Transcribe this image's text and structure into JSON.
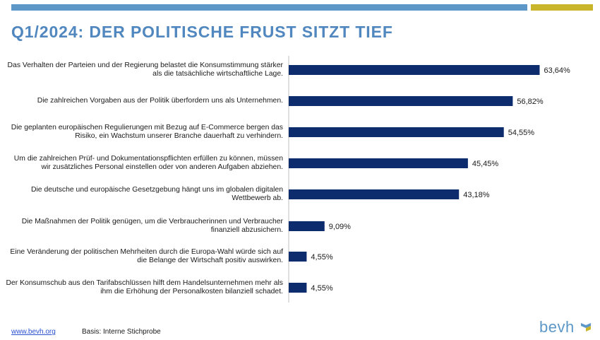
{
  "header": {
    "title": "Q1/2024: DER POLITISCHE FRUST SITZT TIEF"
  },
  "colors": {
    "bar": "#0c2c6e",
    "title": "#4f87be",
    "topbar_blue": "#5d97c7",
    "topbar_gold": "#c8b52a",
    "axis": "#bfbfbf"
  },
  "chart_data": {
    "type": "bar",
    "orientation": "horizontal",
    "title": "Q1/2024: DER POLITISCHE FRUST SITZT TIEF",
    "xlabel": "",
    "ylabel": "",
    "xlim": [
      0,
      70
    ],
    "grid": false,
    "legend": "none",
    "categories": [
      "Das Verhalten der Parteien und der Regierung belastet die Konsumstimmung stärker als die tatsächliche wirtschaftliche Lage.",
      "Die zahlreichen Vorgaben aus der Politik überfordern uns als Unternehmen.",
      "Die geplanten europäischen Regulierungen mit Bezug auf E-Commerce bergen das Risiko, ein Wachstum unserer Branche dauerhaft zu verhindern.",
      "Um die zahlreichen Prüf- und Dokumentationspflichten erfüllen zu können, müssen wir zusätzliches Personal einstellen oder von anderen Aufgaben abziehen.",
      "Die deutsche und europäische Gesetzgebung hängt uns im globalen digitalen Wettbewerb ab.",
      "Die Maßnahmen der Politik genügen, um die Verbraucherinnen und Verbraucher finanziell abzusichern.",
      "Eine Veränderung der politischen Mehrheiten durch die Europa-Wahl würde sich auf die Belange der Wirtschaft positiv auswirken.",
      "Der Konsumschub aus den Tarifabschlüssen hilft dem Handelsunternehmen mehr als ihm die Erhöhung der Personalkosten bilanziell schadet."
    ],
    "values": [
      63.64,
      56.82,
      54.55,
      45.45,
      43.18,
      9.09,
      4.55,
      4.55
    ],
    "value_labels": [
      "63,64%",
      "56,82%",
      "54,55%",
      "45,45%",
      "43,18%",
      "9,09%",
      "4,55%",
      "4,55%"
    ]
  },
  "footer": {
    "link": "www.bevh.org",
    "note": "Basis: Interne Stichprobe"
  },
  "logo": {
    "text": "bevh",
    "icon": "bevh-logo-icon"
  }
}
